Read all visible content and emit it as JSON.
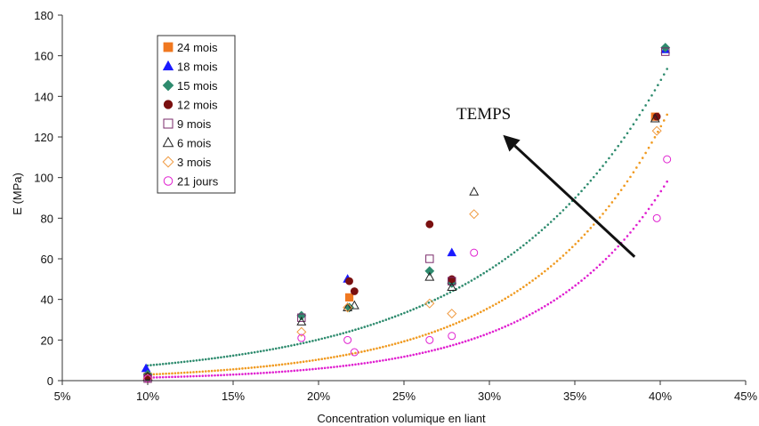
{
  "chart_data": {
    "type": "scatter",
    "title": "",
    "xlabel": "Concentration volumique en liant",
    "ylabel": "E (MPa)",
    "xlim": [
      5,
      45
    ],
    "ylim": [
      0,
      180
    ],
    "x_tick_values": [
      5,
      10,
      15,
      20,
      25,
      30,
      35,
      40,
      45
    ],
    "x_tick_labels": [
      "5%",
      "10%",
      "15%",
      "20%",
      "25%",
      "30%",
      "35%",
      "40%",
      "45%"
    ],
    "y_tick_values": [
      0,
      20,
      40,
      60,
      80,
      100,
      120,
      140,
      160,
      180
    ],
    "y_tick_labels": [
      "0",
      "20",
      "40",
      "60",
      "80",
      "100",
      "120",
      "140",
      "160",
      "180"
    ],
    "grid": false,
    "legend_position": "top-left",
    "annotation": {
      "text": "TEMPS",
      "arrow_from": [
        38.5,
        61
      ],
      "arrow_to": [
        30.8,
        121
      ]
    },
    "series": [
      {
        "name": "24 mois",
        "marker": "square",
        "filled": true,
        "color": "#f07820",
        "points": [
          [
            10,
            2
          ],
          [
            21.8,
            41
          ],
          [
            27.8,
            49
          ],
          [
            39.7,
            130
          ]
        ]
      },
      {
        "name": "18 mois",
        "marker": "triangle",
        "filled": true,
        "color": "#1a1aff",
        "points": [
          [
            9.9,
            6
          ],
          [
            21.7,
            50
          ],
          [
            27.8,
            63
          ],
          [
            40.3,
            163
          ]
        ]
      },
      {
        "name": "15 mois",
        "marker": "diamond",
        "filled": true,
        "color": "#2e8b6e",
        "points": [
          [
            10,
            3
          ],
          [
            19,
            32
          ],
          [
            21.8,
            36
          ],
          [
            26.5,
            54
          ],
          [
            27.8,
            48
          ],
          [
            40.3,
            164
          ]
        ]
      },
      {
        "name": "12 mois",
        "marker": "circle",
        "filled": true,
        "color": "#7a1010",
        "points": [
          [
            10,
            2
          ],
          [
            21.8,
            49
          ],
          [
            22.1,
            44
          ],
          [
            26.5,
            77
          ],
          [
            27.8,
            50
          ],
          [
            39.8,
            130
          ]
        ]
      },
      {
        "name": "9 mois",
        "marker": "square",
        "filled": false,
        "color": "#7a2a6a",
        "points": [
          [
            10,
            1
          ],
          [
            19,
            31
          ],
          [
            26.5,
            60
          ],
          [
            27.8,
            49
          ],
          [
            40.3,
            162
          ]
        ]
      },
      {
        "name": "6 mois",
        "marker": "triangle",
        "filled": false,
        "color": "#222222",
        "points": [
          [
            10,
            2
          ],
          [
            19,
            29
          ],
          [
            21.7,
            36
          ],
          [
            22.1,
            37
          ],
          [
            26.5,
            51
          ],
          [
            27.8,
            46
          ],
          [
            29.1,
            93
          ],
          [
            39.7,
            129
          ]
        ]
      },
      {
        "name": "3 mois",
        "marker": "diamond",
        "filled": false,
        "color": "#f09a40",
        "points": [
          [
            10,
            1
          ],
          [
            19,
            24
          ],
          [
            21.7,
            36
          ],
          [
            26.5,
            38
          ],
          [
            27.8,
            33
          ],
          [
            29.1,
            82
          ],
          [
            39.8,
            123
          ]
        ]
      },
      {
        "name": "21 jours",
        "marker": "circle",
        "filled": false,
        "color": "#e020d0",
        "points": [
          [
            10,
            1
          ],
          [
            19,
            21
          ],
          [
            21.7,
            20
          ],
          [
            22.1,
            14
          ],
          [
            26.5,
            20
          ],
          [
            27.8,
            22
          ],
          [
            29.1,
            63
          ],
          [
            39.8,
            80
          ],
          [
            40.4,
            109
          ]
        ]
      }
    ],
    "trendlines": [
      {
        "style": "dotted",
        "color": "#2e8b6e",
        "x_range": [
          10,
          40.4
        ],
        "y_start": 7.5,
        "y_end": 153.5
      },
      {
        "style": "dotted",
        "color": "#f09a20",
        "x_range": [
          10,
          40.4
        ],
        "y_start": 3,
        "y_end": 131
      },
      {
        "style": "dotted",
        "color": "#e020d0",
        "x_range": [
          10,
          40.4
        ],
        "y_start": 1.5,
        "y_end": 98
      }
    ]
  }
}
